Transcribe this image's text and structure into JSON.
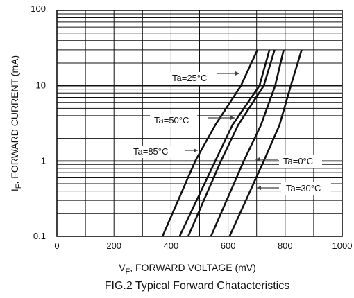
{
  "chart_data": {
    "type": "line",
    "title": "FIG.2 Typical Forward Chatacteristics",
    "xlabel": {
      "main": "V",
      "sub": "F",
      "rest": ", FORWARD VOLTAGE (mV)"
    },
    "ylabel": {
      "main": "I",
      "sub": "F",
      "rest": ", FORWARD CURRENT (mA)"
    },
    "x_ticks": [
      "0",
      "200",
      "400",
      "600",
      "800",
      "1000"
    ],
    "y_ticks": [
      "0.1",
      "1",
      "10",
      "100"
    ],
    "xlim": [
      0,
      1000
    ],
    "ylim": [
      0.1,
      100
    ],
    "y_scale": "log",
    "grid": true,
    "series": [
      {
        "name": "Ta=85°C",
        "x": [
          370,
          485,
          555,
          645,
          703
        ],
        "y": [
          0.1,
          1,
          3,
          10,
          30
        ]
      },
      {
        "name": "Ta=50°C",
        "x": [
          430,
          555,
          615,
          710,
          745
        ],
        "y": [
          0.1,
          1,
          3,
          10,
          30
        ]
      },
      {
        "name": "Ta=25°C",
        "x": [
          460,
          575,
          635,
          725,
          763
        ],
        "y": [
          0.1,
          1,
          3,
          10,
          30
        ]
      },
      {
        "name": "Ta=0°C",
        "x": [
          540,
          655,
          715,
          765,
          795
        ],
        "y": [
          0.1,
          1,
          3,
          10,
          30
        ]
      },
      {
        "name": "Ta=30°C",
        "x": [
          605,
          725,
          780,
          820,
          858
        ],
        "y": [
          0.1,
          1,
          3,
          10,
          30
        ]
      }
    ],
    "annotations": [
      {
        "text": "Ta=25°C"
      },
      {
        "text": "Ta=50°C"
      },
      {
        "text": "Ta=85°C"
      },
      {
        "text": "Ta=0°C"
      },
      {
        "text": "Ta=30°C"
      }
    ]
  }
}
